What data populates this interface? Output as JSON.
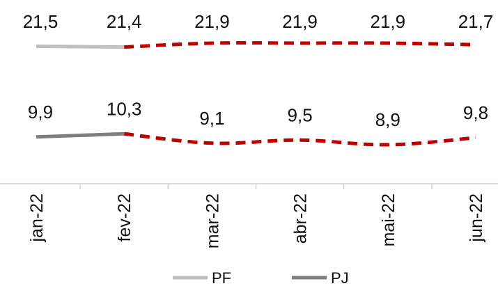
{
  "chart_data": {
    "type": "line",
    "categories": [
      "jan-22",
      "fev-22",
      "mar-22",
      "abr-22",
      "mai-22",
      "jun-22"
    ],
    "series": [
      {
        "name": "PF",
        "values": [
          21.5,
          21.4,
          21.9,
          21.9,
          21.9,
          21.7
        ],
        "labels": [
          "21,5",
          "21,4",
          "21,9",
          "21,9",
          "21,9",
          "21,7"
        ],
        "color": "#bfbfbf",
        "forecast_color": "#c00000",
        "actual_until_index": 1
      },
      {
        "name": "PJ",
        "values": [
          9.9,
          10.3,
          9.1,
          9.5,
          8.9,
          9.8
        ],
        "labels": [
          "9,9",
          "10,3",
          "9,1",
          "9,5",
          "8,9",
          "9,8"
        ],
        "color": "#7f7f7f",
        "forecast_color": "#c00000",
        "actual_until_index": 1
      }
    ],
    "xlabel": "",
    "ylabel": "",
    "ylim": [
      0,
      24
    ],
    "grid": false,
    "legend": "bottom",
    "forecast_style": "dashed"
  }
}
